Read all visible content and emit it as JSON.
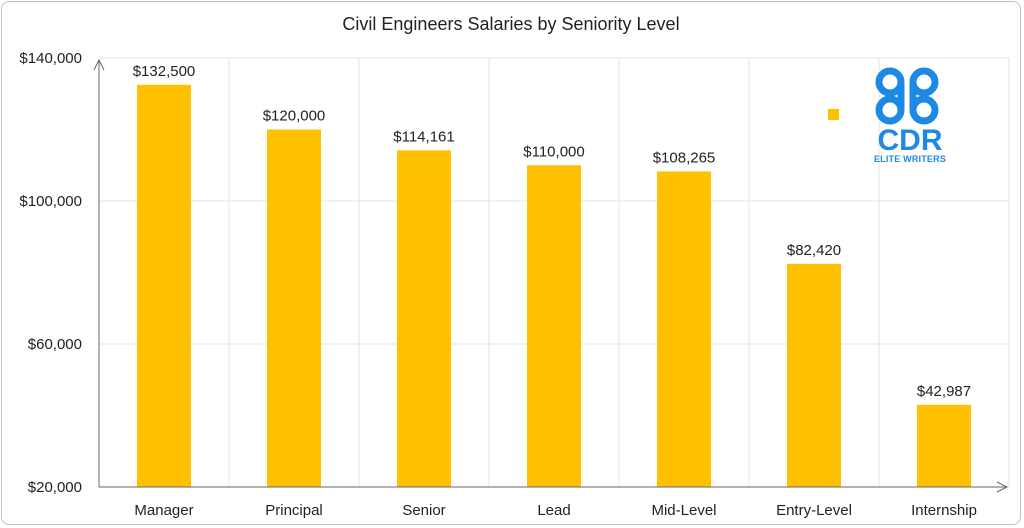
{
  "chart_data": {
    "type": "bar",
    "title": "Civil Engineers Salaries by Seniority Level",
    "categories": [
      "Manager",
      "Principal",
      "Senior",
      "Lead",
      "Mid-Level",
      "Entry-Level",
      "Internship"
    ],
    "values": [
      132500,
      120000,
      114161,
      110000,
      108265,
      82420,
      42987
    ],
    "data_labels": [
      "$132,500",
      "$120,000",
      "$114,161",
      "$110,000",
      "$108,265",
      "$82,420",
      "$42,987"
    ],
    "xlabel": "",
    "ylabel": "",
    "ylim": [
      20000,
      140000
    ],
    "yticks": [
      20000,
      60000,
      100000,
      140000
    ],
    "ytick_labels": [
      "$20,000",
      "$60,000",
      "$100,000",
      "$140,000"
    ],
    "grid": true,
    "legend": "top-right",
    "bar_color": "#FFC000"
  },
  "logo": {
    "mark": "CDR",
    "subtitle": "ELITE WRITERS",
    "color": "#1E88E5"
  }
}
